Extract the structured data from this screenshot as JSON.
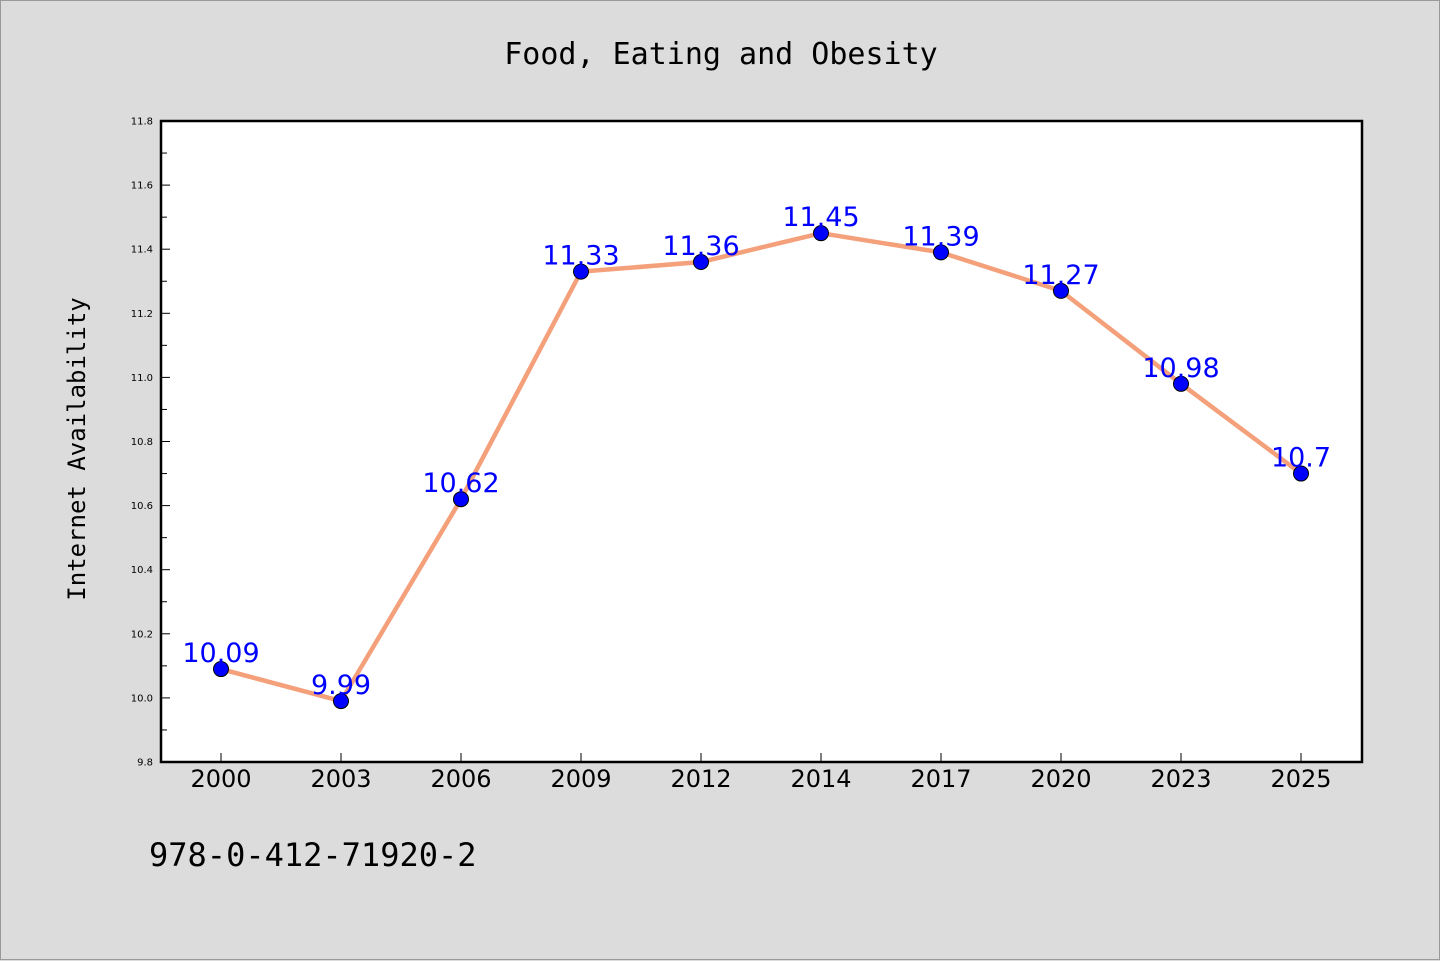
{
  "chart_data": {
    "type": "line",
    "title": "Food, Eating and Obesity",
    "xlabel": "",
    "ylabel": "Internet Availability",
    "categories": [
      "2000",
      "2003",
      "2006",
      "2009",
      "2012",
      "2014",
      "2017",
      "2020",
      "2023",
      "2025"
    ],
    "series": [
      {
        "values": [
          10.09,
          9.99,
          10.62,
          11.33,
          11.36,
          11.45,
          11.39,
          11.27,
          10.98,
          10.7
        ],
        "data_labels": [
          "10.09",
          "9.99",
          "10.62",
          "11.33",
          "11.36",
          "11.45",
          "11.39",
          "11.27",
          "10.98",
          "10.7"
        ],
        "line_color": "#f4a07a",
        "marker_color": "#0000ff"
      }
    ],
    "ylim": [
      9.8,
      11.8
    ],
    "yticks": [
      "9.8",
      "10.0",
      "10.2",
      "10.4",
      "10.6",
      "10.8",
      "11.0",
      "11.2",
      "11.4",
      "11.6",
      "11.8"
    ],
    "grid": false,
    "legend": "none"
  },
  "footnote": "978-0-412-71920-2",
  "colors": {
    "background": "#dcdcdc",
    "plot_background": "#ffffff",
    "data_label": "#0000ff"
  }
}
